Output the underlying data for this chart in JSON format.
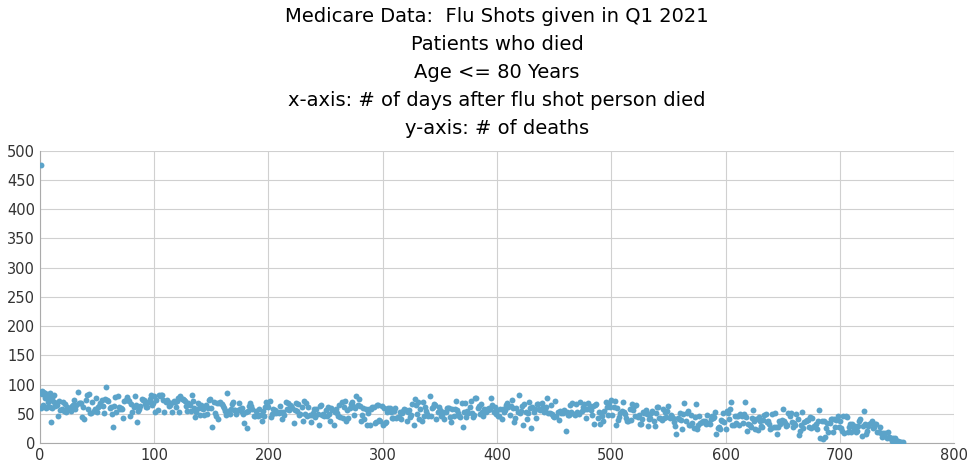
{
  "title_line1": "Medicare Data:  Flu Shots given in Q1 2021",
  "title_line2": "Patients who died",
  "title_line3": "Age <= 80 Years",
  "title_line4": "x-axis: # of days after flu shot person died",
  "title_line5": "y-axis: # of deaths",
  "dot_color": "#5BA3C9",
  "background_color": "#ffffff",
  "grid_color": "#d0d0d0",
  "xlim": [
    0,
    800
  ],
  "ylim": [
    0,
    500
  ],
  "xticks": [
    0,
    100,
    200,
    300,
    400,
    500,
    600,
    700,
    800
  ],
  "yticks": [
    0,
    50,
    100,
    150,
    200,
    250,
    300,
    350,
    400,
    450,
    500
  ],
  "title_fontsize": 14,
  "dot_size": 18
}
